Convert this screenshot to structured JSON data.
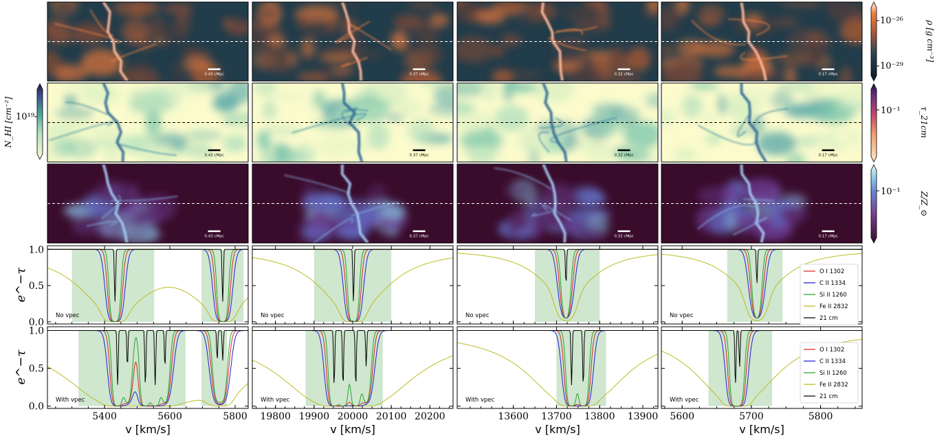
{
  "colorbars": {
    "density": {
      "label": "ρ [g cm⁻³]",
      "tick_top": "10⁻²⁶",
      "tick_bottom": "10⁻²⁹"
    },
    "column": {
      "label": "N_HI [cm⁻²]",
      "tick": "10¹⁹"
    },
    "tau": {
      "label": "τ_21cm",
      "tick": "10⁻¹"
    },
    "metal": {
      "label": "Z/Z_⊙",
      "tick": "10⁻¹"
    }
  },
  "scale_bars": [
    "0.43 cMpc",
    "0.37 cMpc",
    "0.32 cMpc",
    "0.17 cMpc"
  ],
  "row_texts": {
    "no_vpec": "No vpec",
    "with_vpec": "With vpec"
  },
  "ylabel": "e^−τ",
  "xlabel": "v [km/s]",
  "legend": [
    "O I 1302",
    "C II 1334",
    "Si II 1260",
    "Fe II 2832",
    "21 cm"
  ],
  "colors": {
    "O I 1302": "#d62728",
    "C II 1334": "#1f1fd6",
    "Si II 1260": "#2ca02c",
    "Fe II 2832": "#bcbd22",
    "21 cm": "#000000",
    "shade": "#cfe6cf"
  },
  "chart_data": [
    {
      "type": "line",
      "panel": "No vpec, column 1",
      "xlim": [
        5225,
        5840
      ],
      "ylim": [
        -0.03,
        1.05
      ],
      "xticks": [
        5400,
        5600,
        5800
      ],
      "yticks": [
        0.0,
        0.5,
        1.0
      ],
      "shaded_regions": [
        [
          5300,
          5552
        ],
        [
          5697,
          5826
        ]
      ],
      "absorption_minima": [
        {
          "center": 5432,
          "depth": 0.0
        },
        {
          "center": 5762,
          "depth": 0.0
        }
      ]
    },
    {
      "type": "line",
      "panel": "No vpec, column 2",
      "xlim": [
        19740,
        20260
      ],
      "ylim": [
        -0.03,
        1.05
      ],
      "xticks": [
        19800,
        19900,
        20000,
        20100,
        20200
      ],
      "yticks": [
        0.0,
        0.5,
        1.0
      ],
      "shaded_regions": [
        [
          19900,
          20100
        ]
      ],
      "absorption_minima": [
        {
          "center": 20002,
          "depth": 0.0
        }
      ]
    },
    {
      "type": "line",
      "panel": "No vpec, column 3",
      "xlim": [
        13470,
        13935
      ],
      "ylim": [
        -0.03,
        1.05
      ],
      "xticks": [
        13600,
        13700,
        13800,
        13900
      ],
      "yticks": [
        0.0,
        0.5,
        1.0
      ],
      "shaded_regions": [
        [
          13650,
          13800
        ]
      ],
      "absorption_minima": [
        {
          "center": 13722,
          "depth": 0.05
        }
      ]
    },
    {
      "type": "line",
      "panel": "No vpec, column 4",
      "xlim": [
        5570,
        5860
      ],
      "ylim": [
        -0.03,
        1.05
      ],
      "xticks": [
        5600,
        5700,
        5800
      ],
      "yticks": [
        0.0,
        0.5,
        1.0
      ],
      "shaded_regions": [
        [
          5665,
          5745
        ]
      ],
      "absorption_minima": [
        {
          "center": 5708,
          "depth": 0.05
        }
      ]
    },
    {
      "type": "line",
      "panel": "With vpec, column 1",
      "xlim": [
        5225,
        5840
      ],
      "ylim": [
        -0.03,
        1.05
      ],
      "xticks": [
        5400,
        5600,
        5800
      ],
      "yticks": [
        0.0,
        0.5,
        1.0
      ],
      "shaded_regions": [
        [
          5320,
          5648
        ],
        [
          5697,
          5775
        ]
      ],
      "absorption_minima": [
        {
          "center": 5440,
          "depth": 0.0
        },
        {
          "center": 5470,
          "depth": 0.05
        },
        {
          "center": 5525,
          "depth": 0.0
        },
        {
          "center": 5555,
          "depth": 0.0
        },
        {
          "center": 5585,
          "depth": 0.05
        },
        {
          "center": 5745,
          "depth": 0.1
        },
        {
          "center": 5762,
          "depth": 0.1
        }
      ]
    },
    {
      "type": "line",
      "panel": "With vpec, column 2",
      "xlim": [
        19740,
        20260
      ],
      "ylim": [
        -0.03,
        1.05
      ],
      "xticks": [
        19800,
        19900,
        20000,
        20100,
        20200
      ],
      "yticks": [
        0.0,
        0.5,
        1.0
      ],
      "shaded_regions": [
        [
          19878,
          20078
        ]
      ],
      "absorption_minima": [
        {
          "center": 19952,
          "depth": 0.0
        },
        {
          "center": 19975,
          "depth": 0.0
        },
        {
          "center": 20008,
          "depth": 0.0
        },
        {
          "center": 20035,
          "depth": 0.05
        }
      ]
    },
    {
      "type": "line",
      "panel": "With vpec, column 3",
      "xlim": [
        13470,
        13935
      ],
      "ylim": [
        -0.03,
        1.05
      ],
      "xticks": [
        13600,
        13700,
        13800,
        13900
      ],
      "yticks": [
        0.0,
        0.5,
        1.0
      ],
      "shaded_regions": [
        [
          13700,
          13815
        ]
      ],
      "absorption_minima": [
        {
          "center": 13735,
          "depth": 0.0
        },
        {
          "center": 13762,
          "depth": 0.0
        }
      ]
    },
    {
      "type": "line",
      "panel": "With vpec, column 4",
      "xlim": [
        5570,
        5860
      ],
      "ylim": [
        -0.03,
        1.05
      ],
      "xticks": [
        5600,
        5700,
        5800
      ],
      "yticks": [
        0.0,
        0.5,
        1.0
      ],
      "shaded_regions": [
        [
          5638,
          5730
        ]
      ],
      "absorption_minima": [
        {
          "center": 5677,
          "depth": 0.0
        },
        {
          "center": 5683,
          "depth": 0.05
        }
      ]
    }
  ]
}
